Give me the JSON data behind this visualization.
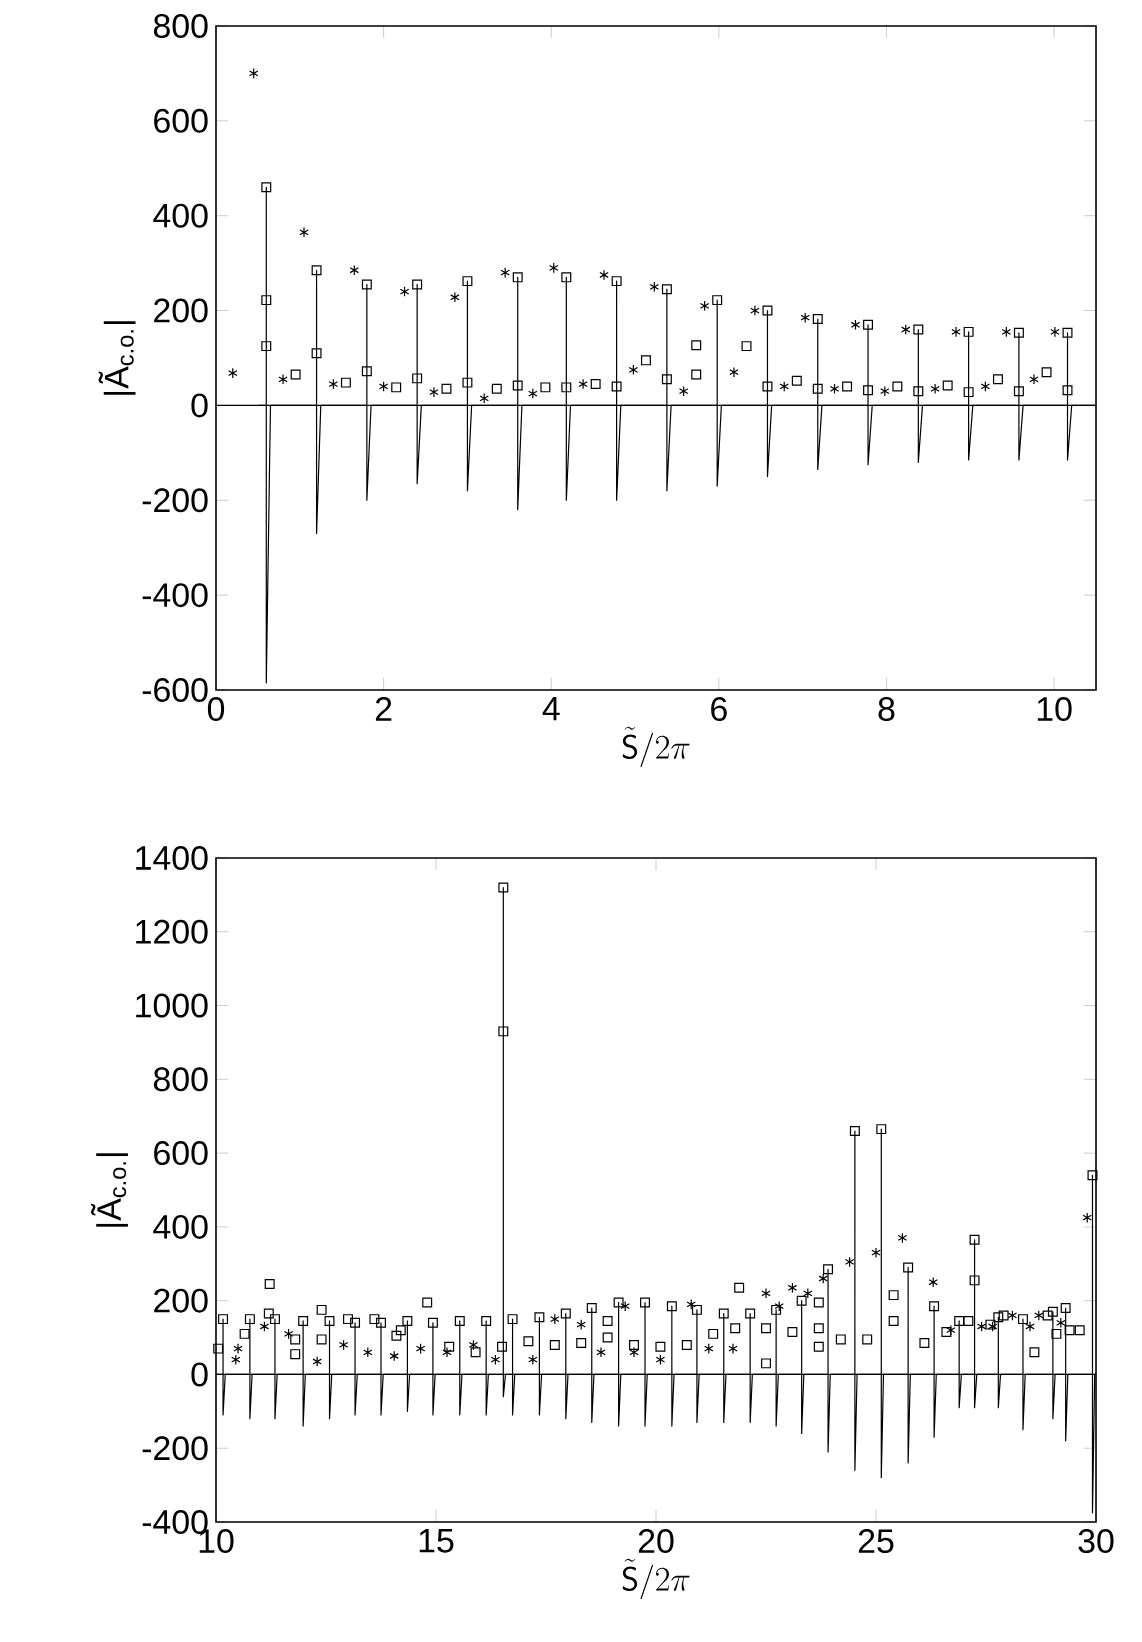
{
  "chart_data": [
    {
      "type": "line",
      "xlabel": "\\tilde{\\mathsf{S}}/2\\pi",
      "ylabel": "|Ã$_{c.o.}$|",
      "xlim": [
        0,
        10.5
      ],
      "ylim": [
        -600,
        800
      ],
      "xticks": [
        0,
        2,
        4,
        6,
        8,
        10
      ],
      "yticks": [
        -600,
        -400,
        -200,
        0,
        200,
        400,
        600,
        800
      ],
      "series": [
        {
          "type": "line",
          "marker": "none",
          "color": "#000000",
          "x": [
            0.5,
            0.6,
            0.6,
            0.6,
            0.65,
            1.2,
            1.2,
            1.2,
            1.25,
            1.8,
            1.8,
            1.8,
            1.85,
            2.4,
            2.4,
            2.4,
            2.45,
            3.0,
            3.0,
            3.0,
            3.05,
            3.6,
            3.6,
            3.6,
            3.65,
            4.18,
            4.18,
            4.18,
            4.23,
            4.78,
            4.78,
            4.78,
            4.83,
            5.38,
            5.38,
            5.38,
            5.43,
            5.98,
            5.98,
            5.98,
            6.03,
            6.58,
            6.58,
            6.58,
            6.63,
            7.18,
            7.18,
            7.18,
            7.23,
            7.78,
            7.78,
            7.78,
            7.83,
            8.38,
            8.38,
            8.38,
            8.43,
            8.98,
            8.98,
            8.98,
            9.03,
            9.58,
            9.58,
            9.58,
            9.63,
            10.16,
            10.16,
            10.16,
            10.21,
            10.5
          ],
          "values": [
            0,
            0,
            460,
            -585,
            0,
            0,
            285,
            -270,
            0,
            0,
            255,
            -200,
            0,
            0,
            255,
            -165,
            0,
            0,
            262,
            -180,
            0,
            0,
            270,
            -220,
            0,
            0,
            270,
            -200,
            0,
            0,
            262,
            -200,
            0,
            0,
            245,
            -180,
            0,
            0,
            222,
            -170,
            0,
            0,
            200,
            -150,
            0,
            0,
            182,
            -135,
            0,
            0,
            170,
            -125,
            0,
            0,
            160,
            -120,
            0,
            0,
            155,
            -115,
            0,
            0,
            153,
            -115,
            0,
            0,
            153,
            -115,
            0,
            0
          ]
        },
        {
          "type": "scatter",
          "marker": "square",
          "color": "#000000",
          "x": [
            0.6,
            0.6,
            0.6,
            0.95,
            1.2,
            1.2,
            1.55,
            1.8,
            1.8,
            2.15,
            2.4,
            2.4,
            2.75,
            3.0,
            3.0,
            3.35,
            3.6,
            3.6,
            3.93,
            4.18,
            4.18,
            4.53,
            4.78,
            4.78,
            5.13,
            5.38,
            5.38,
            5.73,
            5.73,
            5.98,
            6.33,
            6.58,
            6.58,
            6.93,
            7.18,
            7.18,
            7.53,
            7.78,
            7.78,
            8.13,
            8.38,
            8.38,
            8.73,
            8.98,
            8.98,
            9.33,
            9.58,
            9.58,
            9.91,
            10.16,
            10.16
          ],
          "values": [
            460,
            222,
            125,
            65,
            285,
            110,
            48,
            255,
            72,
            38,
            255,
            57,
            35,
            262,
            48,
            35,
            270,
            42,
            38,
            270,
            38,
            45,
            262,
            40,
            95,
            245,
            55,
            127,
            65,
            222,
            125,
            200,
            40,
            52,
            182,
            35,
            40,
            170,
            32,
            40,
            160,
            30,
            42,
            155,
            28,
            55,
            153,
            30,
            70,
            153,
            32
          ]
        },
        {
          "type": "scatter",
          "marker": "cross",
          "color": "#000000",
          "x": [
            0.2,
            0.45,
            0.8,
            1.05,
            1.4,
            1.65,
            2.0,
            2.25,
            2.6,
            2.85,
            3.2,
            3.45,
            3.78,
            4.03,
            4.38,
            4.63,
            4.98,
            5.23,
            5.58,
            5.83,
            6.18,
            6.43,
            6.78,
            7.03,
            7.38,
            7.63,
            7.98,
            8.23,
            8.58,
            8.83,
            9.18,
            9.43,
            9.76,
            10.01
          ],
          "values": [
            68,
            700,
            55,
            365,
            45,
            285,
            40,
            240,
            28,
            228,
            15,
            280,
            25,
            290,
            45,
            275,
            75,
            250,
            30,
            210,
            70,
            200,
            40,
            185,
            35,
            170,
            30,
            160,
            35,
            155,
            40,
            155,
            55,
            155
          ]
        }
      ]
    },
    {
      "type": "line",
      "xlabel": "\\tilde{\\mathsf{S}}/2\\pi",
      "ylabel": "|Ã$_{c.o.}$|",
      "xlim": [
        10,
        30
      ],
      "ylim": [
        -400,
        1400
      ],
      "xticks": [
        10,
        15,
        20,
        25,
        30
      ],
      "yticks": [
        -400,
        -200,
        0,
        200,
        400,
        600,
        800,
        1000,
        1200,
        1400
      ],
      "series": [
        {
          "type": "line",
          "marker": "none",
          "color": "#000000",
          "x": [
            10.0,
            10.16,
            10.16,
            10.16,
            10.21,
            10.77,
            10.77,
            10.77,
            10.82,
            11.34,
            11.34,
            11.34,
            11.39,
            11.98,
            11.98,
            11.98,
            12.03,
            12.58,
            12.58,
            12.58,
            12.63,
            13.16,
            13.16,
            13.16,
            13.21,
            13.75,
            13.75,
            13.75,
            13.8,
            14.35,
            14.35,
            14.35,
            14.4,
            14.93,
            14.93,
            14.93,
            14.98,
            15.54,
            15.54,
            15.54,
            15.59,
            16.14,
            16.14,
            16.14,
            16.19,
            16.53,
            16.53,
            16.53,
            16.58,
            16.74,
            16.74,
            16.74,
            16.79,
            17.35,
            17.35,
            17.35,
            17.4,
            17.95,
            17.95,
            17.95,
            18.0,
            18.54,
            18.54,
            18.54,
            18.59,
            19.15,
            19.15,
            19.15,
            19.2,
            19.75,
            19.75,
            19.75,
            19.8,
            20.36,
            20.36,
            20.36,
            20.41,
            20.93,
            20.93,
            20.93,
            20.98,
            21.54,
            21.54,
            21.54,
            21.59,
            22.14,
            22.14,
            22.14,
            22.19,
            22.73,
            22.73,
            22.73,
            22.78,
            23.31,
            23.31,
            23.31,
            23.36,
            23.91,
            23.91,
            23.91,
            23.96,
            24.52,
            24.52,
            24.52,
            24.57,
            25.12,
            25.12,
            25.12,
            25.17,
            25.73,
            25.73,
            25.73,
            25.78,
            26.32,
            26.32,
            26.32,
            26.37,
            26.89,
            26.89,
            26.89,
            26.94,
            27.24,
            27.24,
            27.24,
            27.29,
            27.78,
            27.78,
            27.78,
            27.83,
            28.34,
            28.34,
            28.34,
            28.39,
            29.02,
            29.02,
            29.02,
            29.07,
            29.31,
            29.31,
            29.31,
            29.36,
            29.92,
            29.92,
            29.92,
            29.97,
            30.0
          ],
          "values": [
            0,
            0,
            150,
            -110,
            0,
            0,
            150,
            -120,
            0,
            0,
            150,
            -120,
            0,
            0,
            145,
            -140,
            0,
            0,
            145,
            -120,
            0,
            0,
            140,
            -110,
            0,
            0,
            140,
            -110,
            0,
            0,
            145,
            -100,
            0,
            0,
            140,
            -110,
            0,
            0,
            145,
            -110,
            0,
            0,
            145,
            -110,
            0,
            0,
            1320,
            -60,
            0,
            0,
            150,
            -110,
            0,
            0,
            155,
            -110,
            0,
            0,
            165,
            -120,
            0,
            0,
            180,
            -130,
            0,
            0,
            195,
            -140,
            0,
            0,
            195,
            -140,
            0,
            0,
            185,
            -140,
            0,
            0,
            175,
            -130,
            0,
            0,
            165,
            -130,
            0,
            0,
            165,
            -130,
            0,
            0,
            175,
            -140,
            0,
            0,
            200,
            -160,
            0,
            0,
            285,
            -210,
            0,
            0,
            660,
            -260,
            0,
            0,
            665,
            -280,
            0,
            0,
            290,
            -240,
            0,
            0,
            185,
            -170,
            0,
            0,
            145,
            -90,
            0,
            0,
            365,
            -90,
            0,
            0,
            155,
            -90,
            0,
            0,
            150,
            -150,
            0,
            0,
            170,
            -120,
            0,
            0,
            180,
            -180,
            0,
            0,
            540,
            -375,
            0,
            0
          ]
        },
        {
          "type": "scatter",
          "marker": "square",
          "color": "#000000",
          "x": [
            10.05,
            10.16,
            10.65,
            10.77,
            11.2,
            11.22,
            11.34,
            11.8,
            11.8,
            11.98,
            12.4,
            12.4,
            12.58,
            13.0,
            13.16,
            13.6,
            13.75,
            14.1,
            14.2,
            14.35,
            14.8,
            14.93,
            15.3,
            15.54,
            15.9,
            16.14,
            16.5,
            16.53,
            16.53,
            16.74,
            17.1,
            17.35,
            17.7,
            17.95,
            18.3,
            18.54,
            18.9,
            18.9,
            19.15,
            19.5,
            19.75,
            20.1,
            20.36,
            20.7,
            20.93,
            21.3,
            21.54,
            21.8,
            21.89,
            22.14,
            22.5,
            22.5,
            22.73,
            23.1,
            23.31,
            23.7,
            23.7,
            23.7,
            23.91,
            24.2,
            24.52,
            24.8,
            25.12,
            25.4,
            25.4,
            25.73,
            26.1,
            26.32,
            26.6,
            26.89,
            27.1,
            27.24,
            27.24,
            27.6,
            27.78,
            27.9,
            28.34,
            28.6,
            28.9,
            29.02,
            29.1,
            29.31,
            29.4,
            29.63,
            29.92
          ],
          "values": [
            70,
            150,
            110,
            150,
            165,
            245,
            150,
            55,
            95,
            145,
            175,
            95,
            145,
            150,
            140,
            150,
            140,
            105,
            120,
            145,
            195,
            140,
            75,
            145,
            60,
            145,
            75,
            1320,
            930,
            150,
            90,
            155,
            80,
            165,
            85,
            180,
            145,
            100,
            195,
            80,
            195,
            75,
            185,
            80,
            175,
            110,
            165,
            125,
            235,
            165,
            125,
            30,
            175,
            115,
            200,
            195,
            125,
            75,
            285,
            95,
            660,
            95,
            665,
            215,
            145,
            290,
            85,
            185,
            115,
            145,
            145,
            365,
            255,
            135,
            155,
            160,
            150,
            60,
            160,
            170,
            110,
            180,
            120,
            120,
            540
          ]
        },
        {
          "type": "scatter",
          "marker": "cross",
          "color": "#000000",
          "x": [
            10.45,
            10.5,
            11.1,
            11.65,
            12.3,
            12.9,
            13.45,
            14.05,
            14.65,
            15.25,
            15.85,
            16.35,
            17.2,
            17.7,
            18.3,
            18.75,
            19.3,
            19.5,
            20.1,
            20.8,
            21.2,
            21.75,
            22.5,
            22.8,
            23.1,
            23.45,
            23.8,
            24.4,
            25.0,
            25.6,
            26.3,
            26.7,
            27.4,
            27.65,
            28.1,
            28.5,
            28.7,
            29.2,
            29.8
          ],
          "values": [
            40,
            70,
            130,
            110,
            35,
            80,
            60,
            50,
            70,
            60,
            80,
            40,
            40,
            150,
            135,
            60,
            185,
            60,
            40,
            190,
            70,
            70,
            220,
            185,
            235,
            220,
            260,
            305,
            330,
            370,
            250,
            120,
            130,
            130,
            160,
            130,
            160,
            140,
            425
          ]
        }
      ]
    }
  ]
}
